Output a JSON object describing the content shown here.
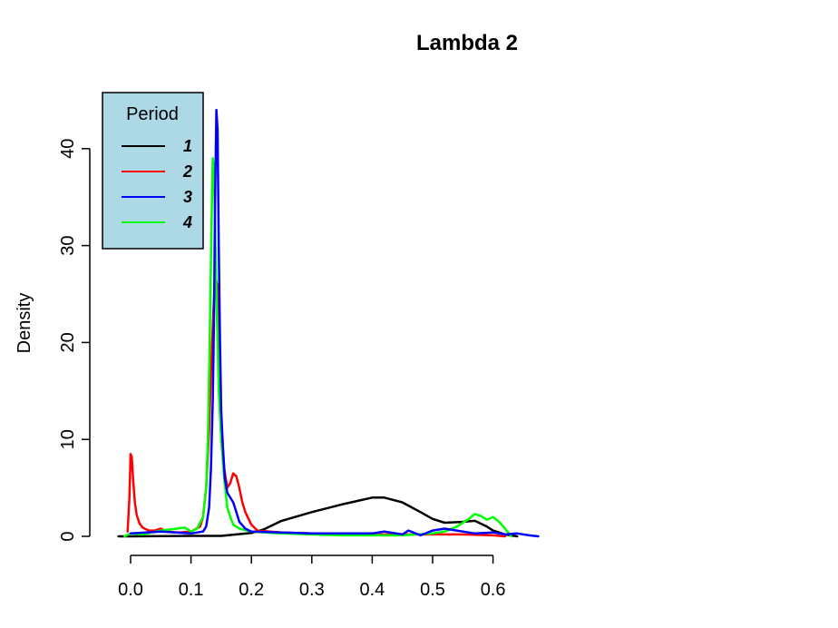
{
  "chart_data": {
    "type": "line",
    "title": "Lambda 2",
    "xlabel": "",
    "ylabel": "Density",
    "xlim": [
      -0.025,
      0.68
    ],
    "ylim": [
      -2,
      45
    ],
    "xticks": [
      0.0,
      0.1,
      0.2,
      0.3,
      0.4,
      0.5,
      0.6
    ],
    "xtick_labels": [
      "0.0",
      "0.1",
      "0.2",
      "0.3",
      "0.4",
      "0.5",
      "0.6"
    ],
    "yticks": [
      0,
      10,
      20,
      30,
      40
    ],
    "ytick_labels": [
      "0",
      "10",
      "20",
      "30",
      "40"
    ],
    "grid": false,
    "legend": {
      "title": "Period",
      "placement": "top-left",
      "background": "#ADD8E6"
    },
    "series": [
      {
        "name": "1",
        "color": "#000000",
        "x": [
          -0.02,
          0.0,
          0.1,
          0.15,
          0.2,
          0.22,
          0.25,
          0.3,
          0.35,
          0.4,
          0.42,
          0.45,
          0.48,
          0.5,
          0.52,
          0.55,
          0.57,
          0.59,
          0.6,
          0.62,
          0.64
        ],
        "y": [
          0.0,
          0.0,
          0.05,
          0.05,
          0.35,
          0.7,
          1.6,
          2.5,
          3.3,
          4.0,
          4.0,
          3.5,
          2.5,
          1.8,
          1.4,
          1.5,
          1.6,
          1.0,
          0.6,
          0.2,
          0.0
        ]
      },
      {
        "name": "2",
        "color": "#FF0000",
        "x": [
          -0.005,
          -0.002,
          0.0,
          0.002,
          0.004,
          0.007,
          0.01,
          0.015,
          0.02,
          0.03,
          0.04,
          0.05,
          0.06,
          0.08,
          0.1,
          0.115,
          0.12,
          0.125,
          0.13,
          0.133,
          0.137,
          0.14,
          0.143,
          0.146,
          0.15,
          0.155,
          0.16,
          0.165,
          0.17,
          0.175,
          0.18,
          0.185,
          0.19,
          0.2,
          0.21,
          0.25,
          0.3,
          0.4,
          0.5,
          0.55,
          0.6,
          0.62
        ],
        "y": [
          0.5,
          4.0,
          8.5,
          8.2,
          6.0,
          3.5,
          2.2,
          1.3,
          0.9,
          0.6,
          0.6,
          0.8,
          0.5,
          0.4,
          0.5,
          1.0,
          2.0,
          5.0,
          11.0,
          17.0,
          23.0,
          27.0,
          26.0,
          20.0,
          12.0,
          7.0,
          5.0,
          5.5,
          6.5,
          6.2,
          5.0,
          3.5,
          2.5,
          1.2,
          0.6,
          0.4,
          0.3,
          0.2,
          0.2,
          0.2,
          0.1,
          0.0
        ]
      },
      {
        "name": "3",
        "color": "#0000FF",
        "x": [
          0.0,
          0.05,
          0.1,
          0.12,
          0.125,
          0.13,
          0.133,
          0.136,
          0.138,
          0.14,
          0.142,
          0.144,
          0.146,
          0.148,
          0.15,
          0.153,
          0.156,
          0.16,
          0.165,
          0.17,
          0.175,
          0.18,
          0.19,
          0.2,
          0.25,
          0.3,
          0.35,
          0.4,
          0.42,
          0.45,
          0.46,
          0.48,
          0.5,
          0.52,
          0.55,
          0.57,
          0.6,
          0.62,
          0.64,
          0.66,
          0.675
        ],
        "y": [
          0.3,
          0.5,
          0.3,
          0.5,
          1.0,
          3.0,
          7.0,
          14.0,
          22.0,
          35.0,
          44.0,
          42.0,
          30.0,
          20.0,
          13.0,
          9.0,
          6.0,
          4.5,
          4.0,
          3.5,
          2.5,
          1.5,
          0.8,
          0.5,
          0.4,
          0.3,
          0.3,
          0.3,
          0.5,
          0.2,
          0.6,
          0.1,
          0.6,
          0.8,
          0.5,
          0.3,
          0.4,
          0.2,
          0.3,
          0.1,
          0.0
        ]
      },
      {
        "name": "4",
        "color": "#00FF00",
        "x": [
          -0.01,
          0.0,
          0.02,
          0.05,
          0.09,
          0.1,
          0.11,
          0.12,
          0.125,
          0.128,
          0.131,
          0.134,
          0.136,
          0.138,
          0.14,
          0.142,
          0.144,
          0.146,
          0.15,
          0.155,
          0.16,
          0.165,
          0.17,
          0.18,
          0.2,
          0.25,
          0.3,
          0.35,
          0.4,
          0.45,
          0.5,
          0.52,
          0.54,
          0.56,
          0.57,
          0.58,
          0.59,
          0.6,
          0.61,
          0.62,
          0.63
        ],
        "y": [
          0.0,
          0.3,
          0.2,
          0.6,
          0.9,
          0.5,
          0.8,
          2.0,
          5.0,
          10.0,
          20.0,
          32.0,
          39.0,
          38.0,
          32.0,
          25.0,
          20.0,
          15.0,
          10.0,
          6.0,
          3.0,
          2.0,
          1.2,
          0.8,
          0.5,
          0.3,
          0.2,
          0.1,
          0.1,
          0.1,
          0.3,
          0.5,
          1.0,
          1.8,
          2.3,
          2.1,
          1.7,
          2.0,
          1.5,
          0.8,
          0.0
        ]
      }
    ]
  }
}
